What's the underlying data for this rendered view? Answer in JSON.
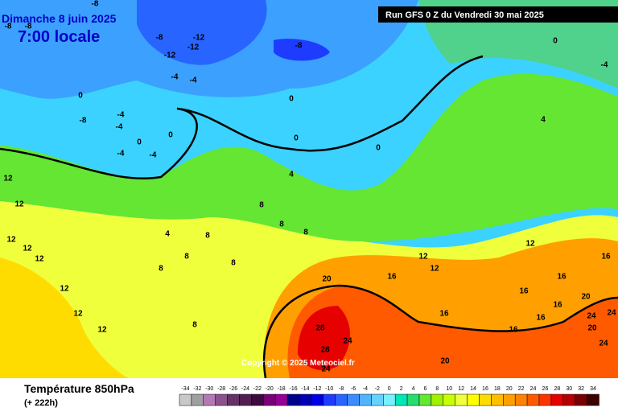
{
  "header": {
    "date": "Dimanche 8 juin 2025",
    "time": "7:00 locale",
    "run": "Run GFS 0 Z du Vendredi 30 mai 2025"
  },
  "map": {
    "labels": [
      -8,
      -8,
      -8,
      -8,
      -12,
      -12,
      -12,
      -8,
      0,
      -4,
      -4,
      -4,
      0,
      0,
      -8,
      -4,
      -4,
      0,
      0,
      -4,
      -4,
      0,
      0,
      4,
      4,
      12,
      12,
      8,
      8,
      8,
      8,
      4,
      12,
      12,
      12,
      8,
      8,
      8,
      12,
      12,
      12,
      8,
      12,
      12,
      12,
      20,
      16,
      16,
      16,
      16,
      16,
      16,
      20,
      24,
      24,
      20,
      16,
      16,
      28,
      24,
      28,
      24,
      20,
      24
    ],
    "copyright": "Copyright © 2025 Meteociel.fr"
  },
  "legend": {
    "title": "Température 850hPa",
    "lead": "(+ 222h)",
    "scale": [
      -34,
      -32,
      -30,
      -28,
      -26,
      -24,
      -22,
      -20,
      -18,
      -16,
      -14,
      -12,
      -10,
      -8,
      -6,
      -4,
      -2,
      0,
      2,
      4,
      6,
      8,
      10,
      12,
      14,
      16,
      18,
      20,
      22,
      24,
      26,
      28,
      30,
      32,
      34
    ],
    "colors": [
      "#c8c8c8",
      "#a0a0a0",
      "#b478b4",
      "#8c508c",
      "#643264",
      "#501e50",
      "#3c0a3c",
      "#780078",
      "#960096",
      "#00008c",
      "#0000b4",
      "#0000e6",
      "#1e3cff",
      "#2864ff",
      "#3c8cff",
      "#50b4ff",
      "#64d2ff",
      "#78f0ff",
      "#00e6b4",
      "#28dc6e",
      "#64e632",
      "#a0f000",
      "#c8ff00",
      "#f0ff3c",
      "#ffff00",
      "#ffdc00",
      "#ffbe00",
      "#ffa000",
      "#ff8200",
      "#ff5a00",
      "#ff3200",
      "#e60000",
      "#b40000",
      "#780000",
      "#3c0000"
    ]
  }
}
